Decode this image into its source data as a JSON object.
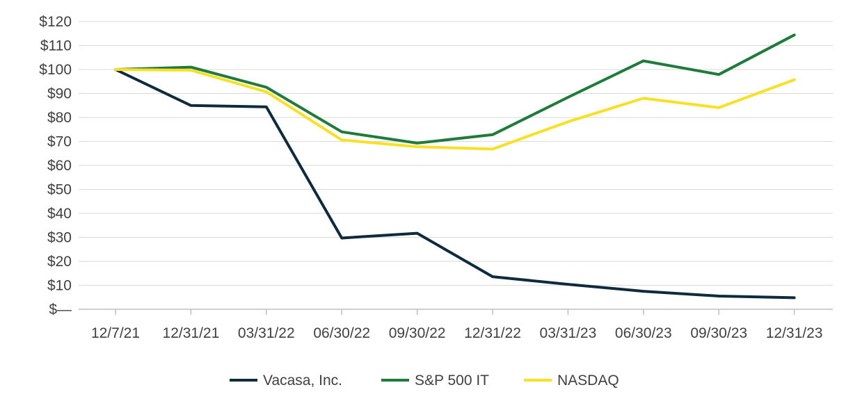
{
  "chart_data": {
    "type": "line",
    "title": "",
    "xlabel": "",
    "ylabel": "",
    "categories": [
      "12/7/21",
      "12/31/21",
      "03/31/22",
      "06/30/22",
      "09/30/22",
      "12/31/22",
      "03/31/23",
      "06/30/23",
      "09/30/23",
      "12/31/23"
    ],
    "y_tick_labels": [
      "$—",
      "$10",
      "$20",
      "$30",
      "$40",
      "$50",
      "$60",
      "$70",
      "$80",
      "$90",
      "$100",
      "$110",
      "$120"
    ],
    "y_ticks": [
      0,
      10,
      20,
      30,
      40,
      50,
      60,
      70,
      80,
      90,
      100,
      110,
      120
    ],
    "ylim": [
      0,
      120
    ],
    "grid": true,
    "legend_position": "bottom",
    "series": [
      {
        "name": "Vacasa, Inc.",
        "color": "#0e2b3d",
        "values": [
          100.0,
          85.0,
          84.4,
          29.7,
          31.7,
          13.6,
          10.4,
          7.5,
          5.5,
          4.8
        ]
      },
      {
        "name": "S&P 500 IT",
        "color": "#1e7b3a",
        "values": [
          100.0,
          101.0,
          92.6,
          74.0,
          69.3,
          72.8,
          88.4,
          103.6,
          97.9,
          114.4
        ]
      },
      {
        "name": "NASDAQ",
        "color": "#f7e026",
        "values": [
          100.0,
          99.7,
          90.7,
          70.6,
          67.8,
          66.8,
          78.2,
          88.0,
          84.1,
          95.7
        ]
      }
    ]
  }
}
